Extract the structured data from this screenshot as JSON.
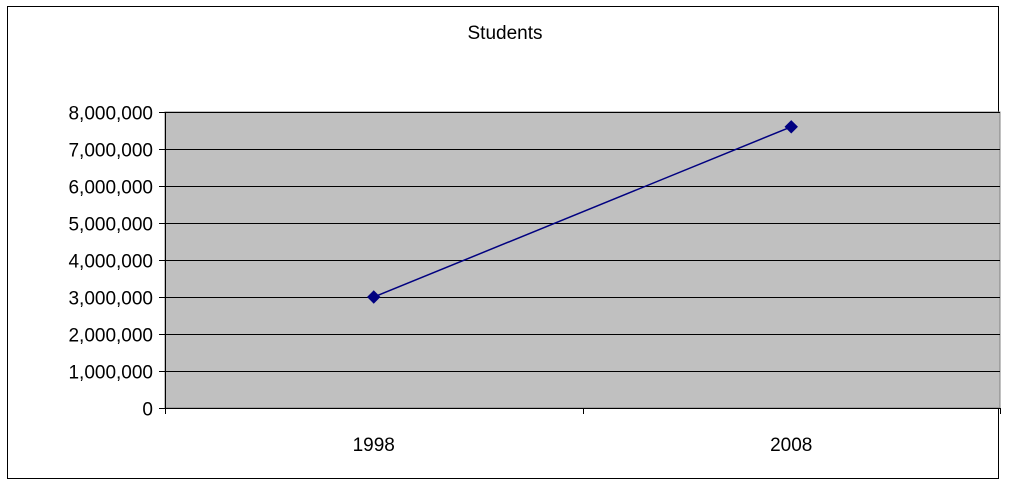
{
  "chart_data": {
    "type": "line",
    "title": "Students",
    "xlabel": "",
    "ylabel": "",
    "categories": [
      "1998",
      "2008"
    ],
    "series": [
      {
        "values": [
          3000000,
          7600000
        ],
        "color": "#000080",
        "marker": "diamond"
      }
    ],
    "ylim": [
      0,
      8000000
    ],
    "y_ticks": [
      0,
      1000000,
      2000000,
      3000000,
      4000000,
      5000000,
      6000000,
      7000000,
      8000000
    ],
    "y_tick_labels": [
      "0",
      "1,000,000",
      "2,000,000",
      "3,000,000",
      "4,000,000",
      "5,000,000",
      "6,000,000",
      "7,000,000",
      "8,000,000"
    ],
    "grid": true,
    "legend": "none",
    "plot_background": "#C0C0C0"
  }
}
